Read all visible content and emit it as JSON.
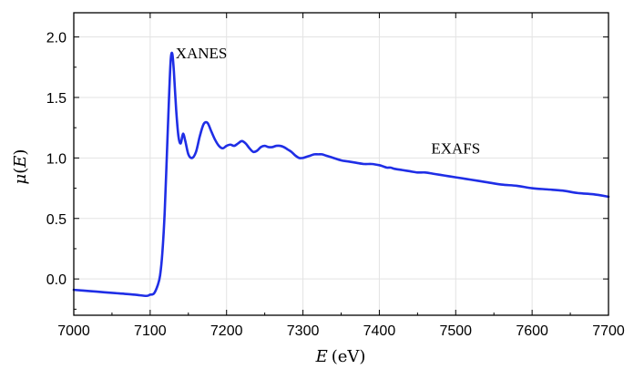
{
  "chart_data": {
    "type": "line",
    "xlabel_var": "E",
    "xlabel_unit": "(eV)",
    "ylabel_var": "μ",
    "ylabel_open": "(",
    "ylabel_arg": "E",
    "ylabel_close": ")",
    "xlim": [
      7000,
      7700
    ],
    "ylim": [
      -0.3,
      2.2
    ],
    "xticks": [
      7000,
      7100,
      7200,
      7300,
      7400,
      7500,
      7600,
      7700
    ],
    "yticks": [
      0.0,
      0.5,
      1.0,
      1.5,
      2.0
    ],
    "ytick_labels": [
      "0.0",
      "0.5",
      "1.0",
      "1.5",
      "2.0"
    ],
    "grid": true,
    "line_color": "#1f2ee6",
    "annotations": [
      {
        "text": "XANES",
        "x": 7167,
        "y": 1.87
      },
      {
        "text": "EXAFS",
        "x": 7500,
        "y": 1.08
      }
    ],
    "series": [
      {
        "x": [
          7000,
          7020,
          7040,
          7060,
          7080,
          7095,
          7100,
          7105,
          7110,
          7113,
          7116,
          7119,
          7122,
          7125,
          7127,
          7129,
          7131,
          7134,
          7137,
          7140,
          7143,
          7146,
          7150,
          7155,
          7160,
          7165,
          7170,
          7175,
          7180,
          7185,
          7190,
          7195,
          7200,
          7205,
          7210,
          7215,
          7220,
          7225,
          7230,
          7235,
          7240,
          7245,
          7250,
          7255,
          7260,
          7265,
          7270,
          7275,
          7280,
          7285,
          7290,
          7295,
          7300,
          7305,
          7310,
          7315,
          7320,
          7325,
          7330,
          7340,
          7350,
          7360,
          7370,
          7380,
          7390,
          7400,
          7405,
          7410,
          7415,
          7420,
          7430,
          7440,
          7450,
          7460,
          7470,
          7480,
          7490,
          7500,
          7520,
          7540,
          7560,
          7580,
          7600,
          7620,
          7640,
          7660,
          7680,
          7700
        ],
        "y": [
          -0.09,
          -0.1,
          -0.11,
          -0.12,
          -0.13,
          -0.14,
          -0.13,
          -0.12,
          -0.05,
          0.03,
          0.22,
          0.55,
          1.05,
          1.55,
          1.82,
          1.86,
          1.72,
          1.4,
          1.18,
          1.12,
          1.2,
          1.14,
          1.03,
          1.0,
          1.05,
          1.18,
          1.28,
          1.29,
          1.22,
          1.15,
          1.1,
          1.08,
          1.1,
          1.11,
          1.1,
          1.12,
          1.14,
          1.12,
          1.08,
          1.05,
          1.06,
          1.09,
          1.1,
          1.09,
          1.09,
          1.1,
          1.1,
          1.09,
          1.07,
          1.05,
          1.02,
          1.0,
          1.0,
          1.01,
          1.02,
          1.03,
          1.03,
          1.03,
          1.02,
          1.0,
          0.98,
          0.97,
          0.96,
          0.95,
          0.95,
          0.94,
          0.93,
          0.92,
          0.92,
          0.91,
          0.9,
          0.89,
          0.88,
          0.88,
          0.87,
          0.86,
          0.85,
          0.84,
          0.82,
          0.8,
          0.78,
          0.77,
          0.75,
          0.74,
          0.73,
          0.71,
          0.7,
          0.68
        ]
      }
    ]
  }
}
